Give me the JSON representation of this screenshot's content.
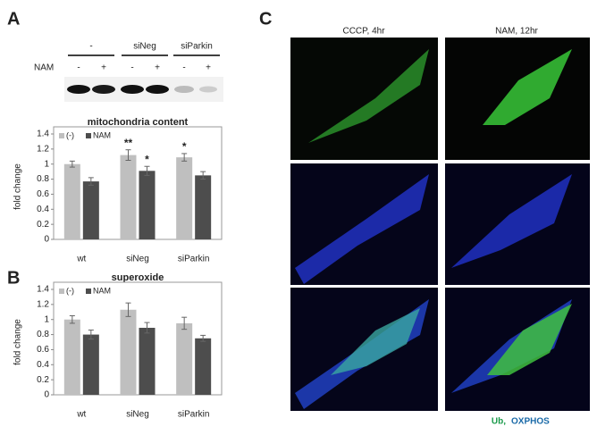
{
  "chart_data": [
    {
      "type": "bar",
      "title": "mitochondria content",
      "y_label": "fold change",
      "categories": [
        "wt",
        "siNeg",
        "siParkin"
      ],
      "series": [
        {
          "name": "(-)",
          "color": "#bfbfbf",
          "values": [
            1.0,
            1.12,
            1.09
          ],
          "errors": [
            0.04,
            0.07,
            0.05
          ],
          "annotations": [
            null,
            "**",
            "*"
          ]
        },
        {
          "name": "NAM",
          "color": "#4d4d4d",
          "values": [
            0.77,
            0.91,
            0.85
          ],
          "errors": [
            0.05,
            0.06,
            0.05
          ],
          "annotations": [
            null,
            "*",
            null
          ]
        }
      ],
      "ylim": [
        0,
        1.4
      ],
      "yticks": [
        0,
        0.2,
        0.4,
        0.6,
        0.8,
        1,
        1.2,
        1.4
      ],
      "legend": "top-left"
    },
    {
      "type": "bar",
      "title": "superoxide",
      "y_label": "fold change",
      "categories": [
        "wt",
        "siNeg",
        "siParkin"
      ],
      "series": [
        {
          "name": "(-)",
          "color": "#bfbfbf",
          "values": [
            1.0,
            1.13,
            0.95
          ],
          "errors": [
            0.05,
            0.09,
            0.08
          ]
        },
        {
          "name": "NAM",
          "color": "#4d4d4d",
          "values": [
            0.8,
            0.89,
            0.75
          ],
          "errors": [
            0.06,
            0.07,
            0.04
          ]
        }
      ],
      "ylim": [
        0,
        1.4
      ],
      "yticks": [
        0,
        0.2,
        0.4,
        0.6,
        0.8,
        1,
        1.2,
        1.4
      ],
      "legend": "top-left"
    }
  ],
  "panels": {
    "a": "A",
    "b": "B",
    "c": "C"
  },
  "blot": {
    "groups": [
      "-",
      "siNeg",
      "siParkin"
    ],
    "row_label": "NAM",
    "lanes": [
      "-",
      "+",
      "-",
      "+",
      "-",
      "+"
    ]
  },
  "images": {
    "columns": [
      "CCCP, 4hr",
      "NAM, 12hr"
    ],
    "stain_ub": "Ub,",
    "stain_oxphos": "OXPHOS"
  }
}
